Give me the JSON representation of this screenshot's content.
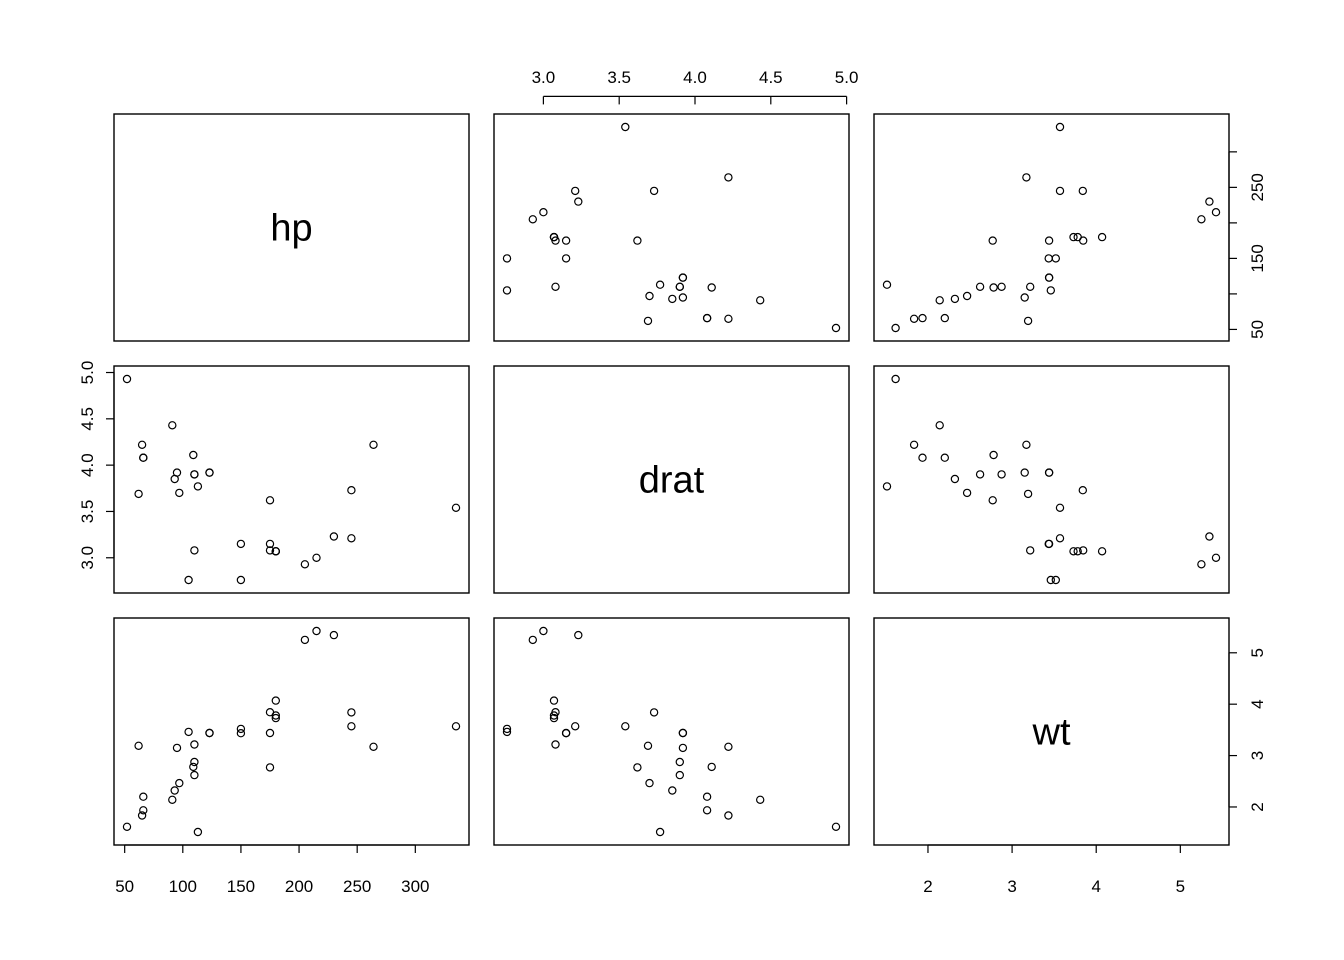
{
  "chart_data": {
    "type": "scatter",
    "kind": "scatterplot-matrix",
    "variables": [
      "hp",
      "drat",
      "wt"
    ],
    "diagonal_labels": [
      "hp",
      "drat",
      "wt"
    ],
    "axes": {
      "hp": {
        "range": [
          52,
          335
        ],
        "ticks": [
          50,
          100,
          150,
          200,
          250,
          300
        ],
        "tick_labels": [
          "50",
          "100",
          "150",
          "200",
          "250",
          "300"
        ],
        "right_ticks": [
          50,
          100,
          150,
          200,
          250,
          300
        ],
        "right_tick_labels": [
          "50",
          "",
          "150",
          "",
          "250",
          ""
        ]
      },
      "drat": {
        "range": [
          2.76,
          4.93
        ],
        "ticks": [
          3.0,
          3.5,
          4.0,
          4.5,
          5.0
        ],
        "tick_labels": [
          "3.0",
          "3.5",
          "4.0",
          "4.5",
          "5.0"
        ]
      },
      "wt": {
        "range": [
          1.513,
          5.424
        ],
        "ticks": [
          2,
          3,
          4,
          5
        ],
        "tick_labels": [
          "2",
          "3",
          "4",
          "5"
        ]
      }
    },
    "tick_sides": {
      "top": "drat",
      "bottom_col0": "hp",
      "bottom_col2": "wt",
      "left_row1": "drat",
      "right_row0": "hp",
      "right_row2": "wt"
    },
    "points": [
      {
        "hp": 110,
        "drat": 3.9,
        "wt": 2.62
      },
      {
        "hp": 110,
        "drat": 3.9,
        "wt": 2.875
      },
      {
        "hp": 93,
        "drat": 3.85,
        "wt": 2.32
      },
      {
        "hp": 110,
        "drat": 3.08,
        "wt": 3.215
      },
      {
        "hp": 175,
        "drat": 3.15,
        "wt": 3.44
      },
      {
        "hp": 105,
        "drat": 2.76,
        "wt": 3.46
      },
      {
        "hp": 245,
        "drat": 3.21,
        "wt": 3.57
      },
      {
        "hp": 62,
        "drat": 3.69,
        "wt": 3.19
      },
      {
        "hp": 95,
        "drat": 3.92,
        "wt": 3.15
      },
      {
        "hp": 123,
        "drat": 3.92,
        "wt": 3.44
      },
      {
        "hp": 123,
        "drat": 3.92,
        "wt": 3.44
      },
      {
        "hp": 180,
        "drat": 3.07,
        "wt": 4.07
      },
      {
        "hp": 180,
        "drat": 3.07,
        "wt": 3.73
      },
      {
        "hp": 180,
        "drat": 3.07,
        "wt": 3.78
      },
      {
        "hp": 205,
        "drat": 2.93,
        "wt": 5.25
      },
      {
        "hp": 215,
        "drat": 3.0,
        "wt": 5.424
      },
      {
        "hp": 230,
        "drat": 3.23,
        "wt": 5.345
      },
      {
        "hp": 66,
        "drat": 4.08,
        "wt": 2.2
      },
      {
        "hp": 52,
        "drat": 4.93,
        "wt": 1.615
      },
      {
        "hp": 65,
        "drat": 4.22,
        "wt": 1.835
      },
      {
        "hp": 97,
        "drat": 3.7,
        "wt": 2.465
      },
      {
        "hp": 150,
        "drat": 2.76,
        "wt": 3.52
      },
      {
        "hp": 150,
        "drat": 3.15,
        "wt": 3.435
      },
      {
        "hp": 245,
        "drat": 3.73,
        "wt": 3.84
      },
      {
        "hp": 175,
        "drat": 3.08,
        "wt": 3.845
      },
      {
        "hp": 66,
        "drat": 4.08,
        "wt": 1.935
      },
      {
        "hp": 91,
        "drat": 4.43,
        "wt": 2.14
      },
      {
        "hp": 113,
        "drat": 3.77,
        "wt": 1.513
      },
      {
        "hp": 264,
        "drat": 4.22,
        "wt": 3.17
      },
      {
        "hp": 175,
        "drat": 3.62,
        "wt": 2.77
      },
      {
        "hp": 335,
        "drat": 3.54,
        "wt": 3.57
      },
      {
        "hp": 109,
        "drat": 4.11,
        "wt": 2.78
      }
    ]
  }
}
